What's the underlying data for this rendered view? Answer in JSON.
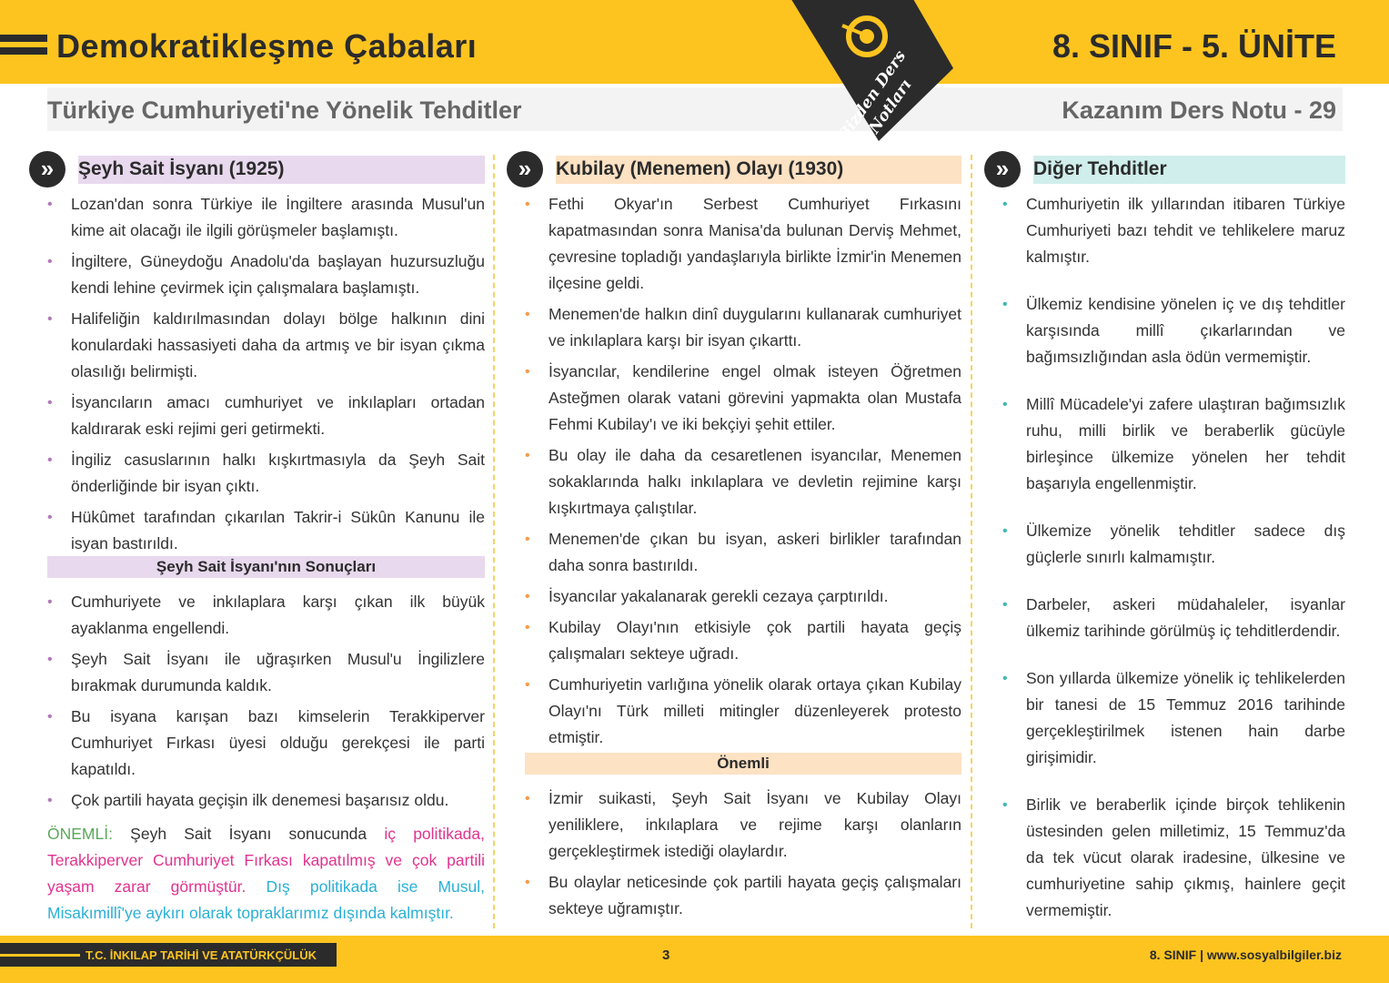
{
  "header": {
    "title": "Demokratikleşme Çabaları",
    "unit": "8. SINIF - 5. ÜNİTE",
    "subtitle": "Türkiye Cumhuriyeti'ne Yönelik Tehditler",
    "lesson": "Kazanım Ders Notu - 29",
    "logo_text": "Bizden Ders Notları"
  },
  "colors": {
    "accent": "#fdc41f",
    "dark": "#2b2b2b",
    "col1": "#e8d9ee",
    "col2": "#fde2c4",
    "col3": "#d0eeec",
    "pink": "#e0338f",
    "blue": "#2ab0d6",
    "green": "#5aa85a"
  },
  "col1": {
    "heading": "Şeyh Sait İsyanı (1925)",
    "items": [
      "Lozan'dan sonra Türkiye ile İngiltere arasında Musul'un kime ait olacağı ile ilgili görüşmeler başlamıştı.",
      "İngiltere, Güneydoğu Anadolu'da başlayan huzursuzluğu kendi lehine çevirmek için çalışmalara başlamıştı.",
      "Halifeliğin kaldırılmasından dolayı bölge halkının dini konulardaki hassasiyeti daha da artmış ve bir isyan çıkma olasılığı belirmişti.",
      "İsyancıların amacı cumhuriyet ve inkılapları ortadan kaldırarak eski rejimi geri getirmekti.",
      "İngiliz casuslarının halkı kışkırtmasıyla da Şeyh Sait önderliğinde bir isyan çıktı.",
      "Hükûmet tarafından çıkarılan Takrir-i Sükûn Kanunu ile isyan bastırıldı."
    ],
    "subheading": "Şeyh Sait İsyanı'nın Sonuçları",
    "results": [
      "Cumhuriyete ve inkılaplara karşı çıkan ilk büyük ayaklanma engellendi.",
      "Şeyh Sait İsyanı ile uğraşırken Musul'u İngilizlere bırakmak durumunda kaldık.",
      "Bu isyana karışan bazı kimselerin Terakkiperver Cumhuriyet Fırkası üyesi olduğu gerekçesi ile parti kapatıldı.",
      "Çok partili hayata geçişin ilk denemesi başarısız oldu."
    ],
    "note": {
      "label": "ÖNEMLİ:",
      "plain": " Şeyh Sait İsyanı sonucunda ",
      "pink": "iç politikada, Terakkiperver Cumhuriyet Fırkası kapatılmış ve çok partili yaşam zarar görmüştür.",
      "blue": " Dış politikada ise Musul, Misakımillî'ye aykırı olarak topraklarımız dışında kalmıştır."
    }
  },
  "col2": {
    "heading": "Kubilay (Menemen) Olayı (1930)",
    "items": [
      "Fethi Okyar'ın Serbest Cumhuriyet Fırkasını kapatmasından sonra Manisa'da bulunan Derviş Mehmet, çevresine topladığı yandaşlarıyla birlikte İzmir'in Menemen ilçesine geldi.",
      "Menemen'de halkın dinî duygularını kullanarak cumhuriyet ve inkılaplara karşı bir isyan çıkarttı.",
      "İsyancılar, kendilerine engel olmak isteyen Öğretmen Asteğmen olarak vatani görevini yapmakta olan Mustafa Fehmi Kubilay'ı ve iki bekçiyi şehit ettiler.",
      "Bu olay ile daha da cesaretlenen isyancılar, Menemen sokaklarında halkı inkılaplara ve devletin rejimine karşı kışkırtmaya çalıştılar.",
      "Menemen'de çıkan bu isyan, askeri birlikler tarafından daha sonra bastırıldı.",
      "İsyancılar yakalanarak gerekli cezaya çarptırıldı.",
      "Kubilay Olayı'nın etkisiyle çok partili hayata geçiş çalışmaları sekteye uğradı.",
      "Cumhuriyetin varlığına yönelik olarak ortaya çıkan Kubilay Olayı'nı Türk milleti mitingler düzenleyerek protesto etmiştir."
    ],
    "subheading": "Önemli",
    "notes": [
      "İzmir suikasti, Şeyh Sait İsyanı ve Kubilay Olayı yeniliklere, inkılaplara ve rejime karşı olanların gerçekleştirmek istediği olaylardır.",
      "Bu olaylar neticesinde çok partili hayata geçiş çalışmaları sekteye uğramıştır."
    ]
  },
  "col3": {
    "heading": "Diğer Tehditler",
    "items": [
      "Cumhuriyetin ilk yıllarından itibaren Türkiye Cumhuriyeti bazı tehdit ve tehlikelere maruz kalmıştır.",
      "Ülkemiz kendisine yönelen iç ve dış tehditler karşısında millî çıkarlarından ve bağımsızlığından asla ödün vermemiştir.",
      "Millî Mücadele'yi zafere ulaştıran bağımsızlık ruhu, milli birlik ve beraberlik gücüyle birleşince ülkemize yönelen her tehdit başarıyla engellenmiştir.",
      "Ülkemize yönelik tehditler sadece dış güçlerle sınırlı kalmamıştır.",
      "Darbeler, askeri müdahaleler, isyanlar ülkemiz tarihinde görülmüş iç tehditlerdendir.",
      "Son yıllarda ülkemize yönelik iç tehlikelerden bir tanesi de 15 Temmuz 2016 tarihinde gerçekleştirilmek istenen hain darbe girişimidir.",
      "Birlik ve beraberlik içinde birçok tehlikenin üstesinden gelen milletimiz, 15 Temmuz'da da tek vücut olarak iradesine, ülkesine ve cumhuriyetine sahip çıkmış, hainlere geçit vermemiştir."
    ]
  },
  "footer": {
    "course": "T.C. İNKILAP TARİHİ VE ATATÜRKÇÜLÜK",
    "page": "3",
    "site": "8. SINIF  |  www.sosyalbilgiler.biz"
  }
}
